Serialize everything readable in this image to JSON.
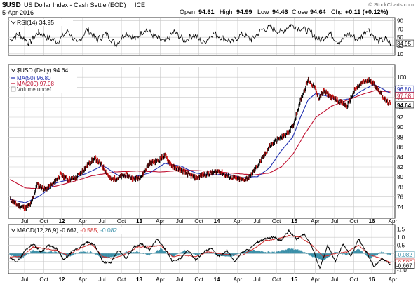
{
  "header": {
    "symbol": "$USD",
    "name": "US Dollar Index - Cash Settle (EOD)",
    "exchange": "ICE",
    "date": "5-Apr-2016",
    "quote": {
      "open_label": "Open",
      "open": "94.61",
      "high_label": "High",
      "high": "94.99",
      "low_label": "Low",
      "low": "94.46",
      "close_label": "Close",
      "close": "94.64",
      "chg_label": "Chg",
      "chg": "+0.11 (+0.12%)"
    },
    "watermark": "© StockCharts.com"
  },
  "colors": {
    "price": "#000000",
    "up_bar": "#000000",
    "down_bar": "#d01010",
    "ma50": "#1f2fb0",
    "ma200": "#c01030",
    "macd": "#000000",
    "signal": "#d03030",
    "histogram": "#3a8fa8",
    "grid": "#c8c8c8",
    "border": "#333333"
  },
  "chart_data": [
    {
      "type": "line",
      "name": "rsi-panel",
      "legend": "RSI(14) 34.95",
      "ylim": [
        8,
        96
      ],
      "ticks": [
        10,
        30,
        50,
        70,
        90
      ],
      "tick_labels": [
        "10",
        "30",
        "50",
        "70",
        "90"
      ],
      "guide_lines": [
        30,
        70
      ],
      "last_value_label": "34.95",
      "x": [
        2011.35,
        2011.47,
        2011.6,
        2011.72,
        2011.85,
        2011.97,
        2012.1,
        2012.22,
        2012.35,
        2012.47,
        2012.6,
        2012.72,
        2012.85,
        2012.97,
        2013.1,
        2013.22,
        2013.35,
        2013.47,
        2013.6,
        2013.72,
        2013.85,
        2013.97,
        2014.1,
        2014.22,
        2014.35,
        2014.47,
        2014.6,
        2014.72,
        2014.85,
        2014.97,
        2015.1,
        2015.22,
        2015.35,
        2015.47,
        2015.6,
        2015.72,
        2015.85,
        2015.97,
        2016.1,
        2016.2,
        2016.26
      ],
      "values": [
        44,
        58,
        36,
        62,
        48,
        40,
        66,
        34,
        70,
        44,
        58,
        32,
        62,
        46,
        70,
        52,
        38,
        64,
        42,
        56,
        36,
        60,
        48,
        40,
        58,
        44,
        68,
        74,
        62,
        80,
        72,
        64,
        42,
        60,
        38,
        58,
        44,
        70,
        40,
        46,
        35
      ]
    },
    {
      "type": "line",
      "name": "price-panel",
      "legend": [
        "$USD (Daily) 94.64",
        "MA(50) 96.80",
        "MA(200) 97.08",
        "Volume undef"
      ],
      "ylim": [
        72,
        102
      ],
      "ticks": [
        74,
        76,
        78,
        80,
        82,
        84,
        86,
        88,
        90,
        92,
        94,
        96,
        98,
        100
      ],
      "tick_labels": [
        "74",
        "76",
        "78",
        "80",
        "82",
        "84",
        "86",
        "88",
        "90",
        "92",
        "94",
        "96",
        "98",
        "100"
      ],
      "price_labels": {
        "ma50": "96.80",
        "ma200": "97.08",
        "close": "94.64"
      },
      "series": [
        {
          "name": "$USD (Daily)",
          "x": [
            2011.35,
            2011.45,
            2011.55,
            2011.62,
            2011.7,
            2011.8,
            2011.9,
            2012.0,
            2012.1,
            2012.2,
            2012.3,
            2012.4,
            2012.45,
            2012.55,
            2012.65,
            2012.75,
            2012.85,
            2012.95,
            2013.05,
            2013.15,
            2013.25,
            2013.35,
            2013.45,
            2013.55,
            2013.65,
            2013.75,
            2013.85,
            2013.95,
            2014.05,
            2014.15,
            2014.25,
            2014.35,
            2014.45,
            2014.5,
            2014.6,
            2014.7,
            2014.8,
            2014.9,
            2015.0,
            2015.1,
            2015.2,
            2015.28,
            2015.33,
            2015.4,
            2015.5,
            2015.6,
            2015.7,
            2015.8,
            2015.9,
            2016.0,
            2016.05,
            2016.12,
            2016.2,
            2016.26
          ],
          "values": [
            75.5,
            74.3,
            73.8,
            74.5,
            78.5,
            77.5,
            78.5,
            80.5,
            79.5,
            79.8,
            81.5,
            83.2,
            83.7,
            82.0,
            79.5,
            79.8,
            80.5,
            79.5,
            80.2,
            82.8,
            83.2,
            84.3,
            82.0,
            81.5,
            80.5,
            79.8,
            80.5,
            80.8,
            81.2,
            80.2,
            79.8,
            79.4,
            80.0,
            81.3,
            83.5,
            86.2,
            87.5,
            88.3,
            90.2,
            95.5,
            99.5,
            98.0,
            95.8,
            97.2,
            96.0,
            95.2,
            94.2,
            97.5,
            99.0,
            99.5,
            98.5,
            97.2,
            95.2,
            94.64
          ]
        },
        {
          "name": "MA(50)",
          "x": [
            2011.35,
            2011.55,
            2011.75,
            2011.95,
            2012.15,
            2012.35,
            2012.55,
            2012.75,
            2012.95,
            2013.15,
            2013.35,
            2013.55,
            2013.75,
            2013.95,
            2014.15,
            2014.35,
            2014.55,
            2014.7,
            2014.85,
            2015.0,
            2015.1,
            2015.2,
            2015.3,
            2015.45,
            2015.6,
            2015.75,
            2015.9,
            2016.05,
            2016.26
          ],
          "values": [
            75.5,
            74.8,
            76.3,
            78.8,
            79.6,
            80.8,
            82.3,
            80.3,
            80.0,
            80.8,
            82.7,
            82.2,
            80.8,
            80.4,
            80.6,
            79.8,
            80.1,
            81.8,
            85.2,
            88.0,
            92.0,
            95.5,
            96.8,
            96.2,
            95.3,
            95.8,
            97.4,
            98.6,
            96.8
          ]
        },
        {
          "name": "MA(200)",
          "x": [
            2011.35,
            2011.55,
            2011.75,
            2011.95,
            2012.15,
            2012.4,
            2012.7,
            2013.0,
            2013.3,
            2013.6,
            2013.9,
            2014.2,
            2014.5,
            2014.7,
            2014.85,
            2015.0,
            2015.15,
            2015.3,
            2015.5,
            2015.7,
            2015.9,
            2016.05,
            2016.26
          ],
          "values": [
            79.5,
            77.8,
            77.6,
            78.2,
            79.0,
            80.2,
            81.0,
            81.2,
            81.0,
            81.4,
            81.2,
            80.8,
            80.4,
            80.8,
            82.0,
            84.5,
            88.5,
            92.0,
            94.2,
            95.4,
            96.6,
            97.3,
            97.08
          ]
        }
      ]
    },
    {
      "type": "line",
      "name": "macd-panel",
      "legend": "MACD(12,26,9) -0.667, -0.585, -0.082",
      "ylim": [
        -1.2,
        1.7
      ],
      "ticks": [
        -1.0,
        -0.5,
        0.0,
        0.5,
        1.0,
        1.5
      ],
      "tick_labels": [
        "-1.0",
        "-0.5",
        "0.0",
        "0.5",
        "1.0",
        "1.5"
      ],
      "last_value_labels": [
        "-0.082",
        "-0.585",
        "-0.667"
      ],
      "series": [
        {
          "name": "MACD",
          "x": [
            2011.35,
            2011.45,
            2011.55,
            2011.65,
            2011.75,
            2011.85,
            2011.95,
            2012.05,
            2012.15,
            2012.25,
            2012.35,
            2012.45,
            2012.55,
            2012.65,
            2012.75,
            2012.85,
            2012.95,
            2013.05,
            2013.15,
            2013.25,
            2013.35,
            2013.45,
            2013.55,
            2013.65,
            2013.75,
            2013.85,
            2013.95,
            2014.05,
            2014.15,
            2014.25,
            2014.35,
            2014.45,
            2014.55,
            2014.65,
            2014.75,
            2014.85,
            2014.95,
            2015.05,
            2015.15,
            2015.25,
            2015.35,
            2015.45,
            2015.55,
            2015.65,
            2015.75,
            2015.85,
            2015.95,
            2016.05,
            2016.15,
            2016.26
          ],
          "values": [
            -0.3,
            -0.5,
            0.2,
            0.6,
            0.1,
            0.5,
            0.3,
            -0.4,
            0.1,
            0.4,
            0.7,
            0.5,
            -0.5,
            -0.6,
            0.2,
            -0.3,
            0.4,
            0.6,
            0.2,
            0.9,
            0.3,
            -0.5,
            -0.3,
            0.2,
            -0.4,
            0.1,
            0.3,
            -0.2,
            0.2,
            -0.5,
            0.1,
            0.3,
            0.7,
            0.9,
            1.0,
            0.8,
            1.4,
            0.9,
            1.2,
            0.4,
            -0.9,
            0.5,
            -0.5,
            0.6,
            -0.2,
            0.9,
            0.1,
            -0.8,
            -0.3,
            -0.667
          ]
        },
        {
          "name": "Signal",
          "x": [
            2011.35,
            2011.5,
            2011.65,
            2011.8,
            2011.95,
            2012.1,
            2012.25,
            2012.4,
            2012.55,
            2012.7,
            2012.85,
            2013.0,
            2013.15,
            2013.3,
            2013.45,
            2013.6,
            2013.75,
            2013.9,
            2014.05,
            2014.2,
            2014.35,
            2014.5,
            2014.65,
            2014.8,
            2014.95,
            2015.1,
            2015.25,
            2015.4,
            2015.55,
            2015.7,
            2015.85,
            2016.0,
            2016.15,
            2016.26
          ],
          "values": [
            -0.2,
            -0.2,
            0.4,
            0.3,
            0.2,
            -0.1,
            0.3,
            0.6,
            -0.2,
            -0.3,
            0.0,
            0.4,
            0.4,
            0.5,
            -0.2,
            -0.1,
            -0.2,
            0.1,
            0.0,
            -0.1,
            -0.1,
            0.3,
            0.8,
            0.9,
            1.1,
            1.0,
            0.5,
            -0.2,
            0.0,
            0.1,
            0.5,
            -0.1,
            -0.3,
            -0.585
          ]
        },
        {
          "name": "Histogram",
          "x": [
            2011.35,
            2011.5,
            2011.65,
            2011.8,
            2011.95,
            2012.1,
            2012.25,
            2012.4,
            2012.55,
            2012.7,
            2012.85,
            2013.0,
            2013.15,
            2013.3,
            2013.45,
            2013.6,
            2013.75,
            2013.9,
            2014.05,
            2014.2,
            2014.35,
            2014.5,
            2014.65,
            2014.8,
            2014.95,
            2015.1,
            2015.25,
            2015.4,
            2015.55,
            2015.7,
            2015.85,
            2016.0,
            2016.15,
            2016.26
          ],
          "values": [
            -0.1,
            -0.3,
            0.2,
            0.1,
            0.1,
            -0.2,
            0.1,
            0.1,
            -0.3,
            -0.2,
            0.1,
            0.1,
            -0.1,
            0.3,
            -0.2,
            0.2,
            -0.1,
            0.1,
            -0.1,
            -0.2,
            0.1,
            0.2,
            0.1,
            0.1,
            0.3,
            0.2,
            -0.2,
            -0.4,
            0.1,
            -0.1,
            0.3,
            -0.3,
            0.1,
            -0.082
          ]
        }
      ]
    }
  ],
  "time_axis": {
    "labels": [
      {
        "t": 2011.54,
        "label": "Jul",
        "bold": false
      },
      {
        "t": 2011.79,
        "label": "Oct",
        "bold": false
      },
      {
        "t": 2012.02,
        "label": "12",
        "bold": true
      },
      {
        "t": 2012.29,
        "label": "Apr",
        "bold": false
      },
      {
        "t": 2012.54,
        "label": "Jul",
        "bold": false
      },
      {
        "t": 2012.79,
        "label": "Oct",
        "bold": false
      },
      {
        "t": 2013.02,
        "label": "13",
        "bold": true
      },
      {
        "t": 2013.29,
        "label": "Apr",
        "bold": false
      },
      {
        "t": 2013.54,
        "label": "Jul",
        "bold": false
      },
      {
        "t": 2013.79,
        "label": "Oct",
        "bold": false
      },
      {
        "t": 2014.02,
        "label": "14",
        "bold": true
      },
      {
        "t": 2014.29,
        "label": "Apr",
        "bold": false
      },
      {
        "t": 2014.54,
        "label": "Jul",
        "bold": false
      },
      {
        "t": 2014.79,
        "label": "Oct",
        "bold": false
      },
      {
        "t": 2015.02,
        "label": "15",
        "bold": true
      },
      {
        "t": 2015.29,
        "label": "Apr",
        "bold": false
      },
      {
        "t": 2015.54,
        "label": "Jul",
        "bold": false
      },
      {
        "t": 2015.79,
        "label": "Oct",
        "bold": false
      },
      {
        "t": 2016.02,
        "label": "16",
        "bold": true
      },
      {
        "t": 2016.29,
        "label": "Apr",
        "bold": false
      }
    ],
    "range": [
      2011.35,
      2016.3
    ]
  }
}
